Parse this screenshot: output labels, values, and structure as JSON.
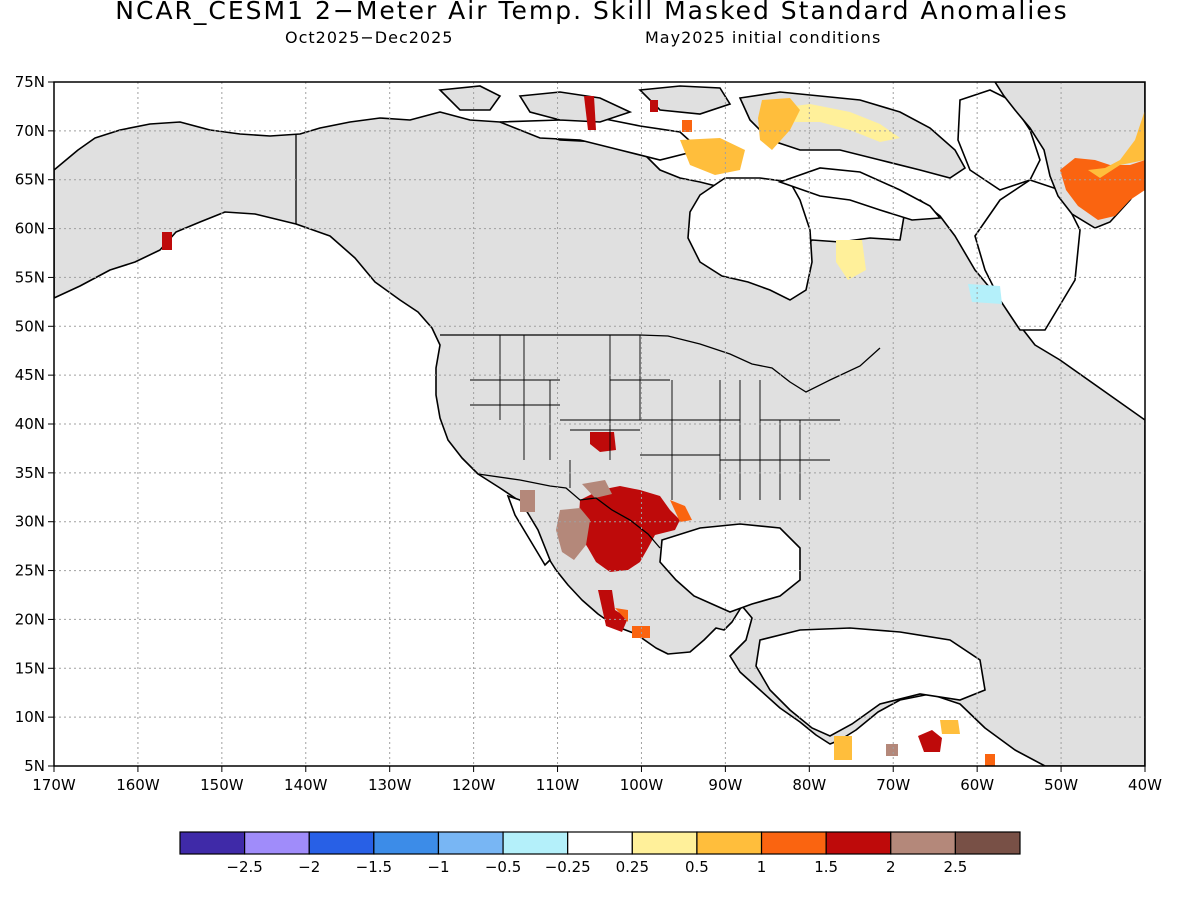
{
  "header": {
    "title": "NCAR_CESM1 2−Meter Air Temp. Skill Masked Standard Anomalies",
    "period": "Oct2025−Dec2025",
    "init": "May2025 initial conditions"
  },
  "map": {
    "projection": "lat-lon",
    "lon_range": [
      -170,
      -40
    ],
    "lat_range": [
      5,
      75
    ],
    "lat_labels": [
      "75N",
      "70N",
      "65N",
      "60N",
      "55N",
      "50N",
      "45N",
      "40N",
      "35N",
      "30N",
      "25N",
      "20N",
      "15N",
      "10N",
      "5N"
    ],
    "lon_labels": [
      "170W",
      "160W",
      "150W",
      "140W",
      "130W",
      "120W",
      "110W",
      "100W",
      "90W",
      "80W",
      "70W",
      "60W",
      "50W",
      "40W"
    ],
    "grid": "dotted",
    "colors": {
      "land_masked": "#e0e0e0",
      "coastline": "#000000"
    },
    "anomaly_regions": [
      {
        "name": "Southern US / Northern Mexico",
        "level": "1.5 to 2"
      },
      {
        "name": "Southern Colorado",
        "level": "1.5 to 2"
      },
      {
        "name": "Greenland",
        "level": "0.5 to 1.5"
      },
      {
        "name": "Baffin Island / Arctic Archipelago",
        "level": "0.25 to 1"
      },
      {
        "name": "Venezuela",
        "level": "0.5 to 2"
      }
    ]
  },
  "colorbar": {
    "labels": [
      "−2.5",
      "−2",
      "−1.5",
      "−1",
      "−0.5",
      "−0.25",
      "0.25",
      "0.5",
      "1",
      "1.5",
      "2",
      "2.5"
    ],
    "colors": [
      "#3f2aa8",
      "#a08cfa",
      "#2860e6",
      "#3c8ce8",
      "#78b6f4",
      "#b4f0fa",
      "#ffffff",
      "#fff09a",
      "#ffbe3c",
      "#fa6410",
      "#be0a0a",
      "#b4887a",
      "#785046"
    ]
  }
}
